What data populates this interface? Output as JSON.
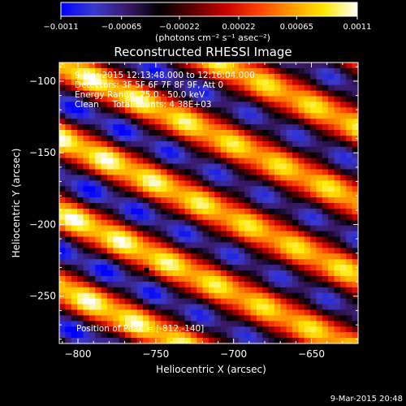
{
  "colorbar": {
    "tick_labels": [
      "-0.0011",
      "-0.00065",
      "-0.00022",
      "0.00022",
      "0.00065",
      "0.0011"
    ],
    "unit_label": "(photons cm⁻² s⁻¹ asec⁻²)",
    "range": [
      -0.0011,
      0.0011
    ],
    "colormap": [
      "#0000ff",
      "#3a3ad0",
      "#3a1a6a",
      "#000000",
      "#5a0000",
      "#c80000",
      "#ff4000",
      "#ff9a00",
      "#ffe800",
      "#ffffff"
    ]
  },
  "chart_data": {
    "type": "heatmap",
    "title": "Reconstructed RHESSI Image",
    "xlabel": "Heliocentric X (arcsec)",
    "ylabel": "Heliocentric Y (arcsec)",
    "xlim": [
      -812,
      -620
    ],
    "ylim": [
      -283,
      -87
    ],
    "x_ticks": [
      -800,
      -750,
      -700,
      -650
    ],
    "y_ticks": [
      -100,
      -150,
      -200,
      -250
    ],
    "x_tick_labels": [
      "-800",
      "-750",
      "-700",
      "-650"
    ],
    "y_tick_labels": [
      "−100",
      "−150",
      "−200",
      "−250"
    ],
    "grid_shape": [
      50,
      50
    ],
    "fringe_slope_y_per_x": -0.5,
    "fringe_period_arcsec_y": 52,
    "peak": {
      "x": -812,
      "y": -140
    },
    "minimum_marker": {
      "x": -756,
      "y": -232
    },
    "annotations": {
      "time_range": "9-Mar-2015 12:13:48.000 to 12:16:04.000",
      "detectors": "Detectors: 3F 5F 6F 7F 8F 9F, Att 0",
      "energy_range": "Energy Range: 25.0 - 50.0 keV",
      "method_counts": "Clean     Total counts: 4.38E+03",
      "peak_position": "Position of Peak = [-812,-140]"
    }
  },
  "footer": {
    "timestamp": "9-Mar-2015 20:48"
  }
}
